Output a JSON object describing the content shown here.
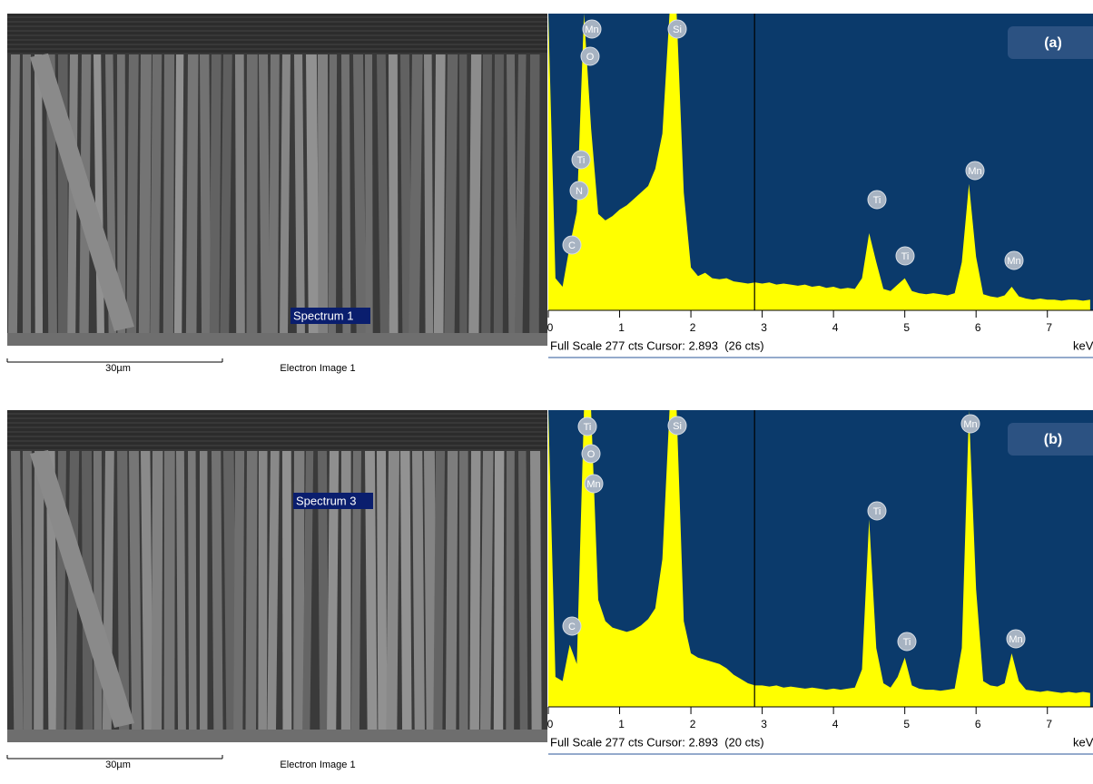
{
  "chart_data": [
    {
      "type": "area",
      "panel_label": "(a)",
      "color": "#ffff00",
      "background": "#0b3a6b",
      "x": [
        0,
        0.1,
        0.2,
        0.3,
        0.4,
        0.5,
        0.6,
        0.7,
        0.8,
        0.9,
        1,
        1.1,
        1.2,
        1.3,
        1.4,
        1.5,
        1.6,
        1.7,
        1.8,
        1.9,
        2,
        2.1,
        2.2,
        2.3,
        2.4,
        2.5,
        2.6,
        2.7,
        2.8,
        2.9,
        3,
        3.1,
        3.2,
        3.3,
        3.4,
        3.5,
        3.6,
        3.7,
        3.8,
        3.9,
        4,
        4.1,
        4.2,
        4.3,
        4.4,
        4.5,
        4.6,
        4.7,
        4.8,
        4.9,
        5,
        5.1,
        5.2,
        5.3,
        5.4,
        5.5,
        5.6,
        5.7,
        5.8,
        5.9,
        6,
        6.1,
        6.2,
        6.3,
        6.4,
        6.5,
        6.6,
        6.7,
        6.8,
        6.9,
        7,
        7.1,
        7.2,
        7.3,
        7.4,
        7.5,
        7.6
      ],
      "values": [
        277,
        30,
        22,
        60,
        92,
        277,
        170,
        90,
        84,
        88,
        94,
        98,
        104,
        110,
        116,
        132,
        165,
        277,
        277,
        110,
        40,
        32,
        35,
        30,
        29,
        30,
        27,
        26,
        25,
        26,
        25,
        26,
        24,
        25,
        24,
        23,
        24,
        22,
        23,
        21,
        22,
        20,
        21,
        20,
        30,
        72,
        45,
        20,
        18,
        24,
        30,
        18,
        16,
        15,
        16,
        15,
        14,
        16,
        45,
        118,
        50,
        15,
        13,
        12,
        14,
        22,
        13,
        11,
        10,
        11,
        10,
        10,
        9,
        10,
        10,
        9,
        10
      ],
      "xlim": [
        0,
        7.64
      ],
      "xticks": [
        0,
        1,
        2,
        3,
        4,
        5,
        6,
        7
      ],
      "ylim": [
        0,
        277
      ],
      "cursor": 2.893,
      "x_unit": "keV",
      "footer": "Full Scale 277 cts Cursor: 2.893  (26 cts)",
      "peak_labels": [
        "Mn",
        "O",
        "Ti",
        "N",
        "C",
        "Si",
        "Ti",
        "Ti",
        "Mn",
        "Mn"
      ]
    },
    {
      "type": "area",
      "panel_label": "(b)",
      "color": "#ffff00",
      "background": "#0b3a6b",
      "x": [
        0,
        0.1,
        0.2,
        0.3,
        0.4,
        0.5,
        0.6,
        0.7,
        0.8,
        0.9,
        1,
        1.1,
        1.2,
        1.3,
        1.4,
        1.5,
        1.6,
        1.7,
        1.8,
        1.9,
        2,
        2.1,
        2.2,
        2.3,
        2.4,
        2.5,
        2.6,
        2.7,
        2.8,
        2.9,
        3,
        3.1,
        3.2,
        3.3,
        3.4,
        3.5,
        3.6,
        3.7,
        3.8,
        3.9,
        4,
        4.1,
        4.2,
        4.3,
        4.4,
        4.5,
        4.6,
        4.7,
        4.8,
        4.9,
        5,
        5.1,
        5.2,
        5.3,
        5.4,
        5.5,
        5.6,
        5.7,
        5.8,
        5.9,
        6,
        6.1,
        6.2,
        6.3,
        6.4,
        6.5,
        6.6,
        6.7,
        6.8,
        6.9,
        7,
        7.1,
        7.2,
        7.3,
        7.4,
        7.5,
        7.6
      ],
      "values": [
        277,
        28,
        24,
        58,
        40,
        277,
        277,
        100,
        80,
        74,
        72,
        70,
        72,
        76,
        82,
        92,
        138,
        277,
        277,
        80,
        50,
        46,
        44,
        42,
        40,
        36,
        30,
        26,
        22,
        20,
        20,
        19,
        20,
        18,
        19,
        18,
        17,
        18,
        17,
        16,
        17,
        16,
        17,
        18,
        35,
        175,
        55,
        22,
        18,
        28,
        46,
        20,
        17,
        16,
        16,
        15,
        16,
        17,
        55,
        277,
        110,
        24,
        20,
        19,
        22,
        50,
        24,
        16,
        15,
        14,
        15,
        14,
        13,
        14,
        13,
        14,
        13
      ],
      "xlim": [
        0,
        7.64
      ],
      "xticks": [
        0,
        1,
        2,
        3,
        4,
        5,
        6,
        7
      ],
      "ylim": [
        0,
        277
      ],
      "cursor": 2.893,
      "x_unit": "keV",
      "footer": "Full Scale 277 cts Cursor: 2.893  (20 cts)",
      "peak_labels": [
        "Ti",
        "O",
        "Mn",
        "C",
        "Si",
        "Ti",
        "Ti",
        "Mn",
        "Mn"
      ]
    }
  ],
  "images": [
    {
      "spectrum_label": "Spectrum 1",
      "scale": "30µm",
      "caption": "Electron Image 1"
    },
    {
      "spectrum_label": "Spectrum 3",
      "scale": "30µm",
      "caption": "Electron Image 1"
    }
  ]
}
